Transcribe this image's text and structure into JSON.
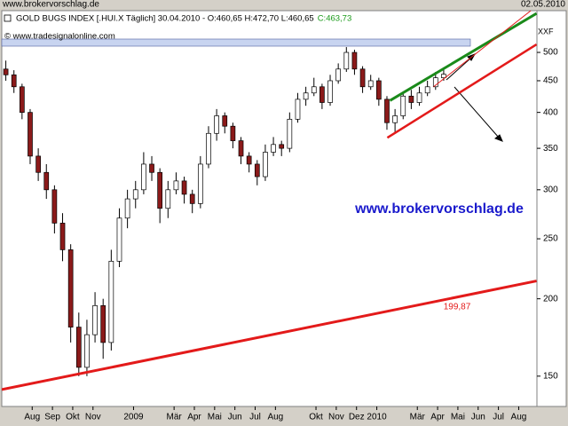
{
  "chart_data": {
    "type": "candlestick",
    "site": "www.brokervorschlag.de",
    "date": "02.05.2010",
    "legend_title": "GOLD BUGS INDEX [.HUI.X  Täglich] 30.04.2010 - O:460,65 H:472,70 L:460,65",
    "legend_close": "C:463,73",
    "copyright": "© www.tradesignalonline.com",
    "axis_label": "XXF",
    "watermark": "www.brokervorschlag.de",
    "log_scale": true,
    "up_color": "#ffffff",
    "down_color": "#8b1a1a",
    "x": [
      0.2,
      0.6,
      1.0,
      1.4,
      1.8,
      2.2,
      2.6,
      3.0,
      3.4,
      3.8,
      4.2,
      4.6,
      5.0,
      5.4,
      5.8,
      6.2,
      6.6,
      7.0,
      7.4,
      7.8,
      8.2,
      8.6,
      9.0,
      9.4,
      9.8,
      10.2,
      10.6,
      11.0,
      11.4,
      11.8,
      12.2,
      12.6,
      13.0,
      13.4,
      13.8,
      14.2,
      14.6,
      15.0,
      15.4,
      15.8,
      16.2,
      16.6,
      17.0,
      17.4,
      17.8,
      18.2,
      18.6,
      19.0,
      19.4,
      19.8,
      20.2,
      20.6,
      21.0,
      21.4,
      21.8
    ],
    "open": [
      470,
      460,
      440,
      400,
      340,
      320,
      300,
      265,
      240,
      180,
      155,
      175,
      195,
      170,
      230,
      270,
      290,
      300,
      330,
      320,
      280,
      300,
      310,
      295,
      285,
      330,
      370,
      395,
      380,
      360,
      340,
      330,
      315,
      345,
      355,
      350,
      390,
      420,
      430,
      440,
      415,
      450,
      470,
      500,
      470,
      440,
      450,
      420,
      385,
      395,
      425,
      415,
      430,
      440,
      455
    ],
    "high": [
      485,
      468,
      445,
      405,
      350,
      330,
      305,
      275,
      245,
      190,
      185,
      205,
      200,
      240,
      280,
      300,
      310,
      345,
      340,
      325,
      310,
      320,
      315,
      300,
      340,
      380,
      405,
      400,
      385,
      365,
      345,
      335,
      355,
      365,
      360,
      400,
      430,
      440,
      455,
      445,
      460,
      480,
      510,
      505,
      475,
      460,
      455,
      425,
      405,
      430,
      435,
      440,
      450,
      465,
      473
    ],
    "low": [
      450,
      430,
      390,
      330,
      310,
      290,
      255,
      230,
      170,
      150,
      150,
      170,
      160,
      165,
      225,
      260,
      280,
      295,
      310,
      265,
      270,
      295,
      285,
      275,
      280,
      325,
      360,
      370,
      350,
      330,
      320,
      305,
      310,
      340,
      340,
      345,
      385,
      410,
      425,
      405,
      410,
      445,
      465,
      460,
      430,
      435,
      410,
      375,
      370,
      390,
      405,
      410,
      425,
      435,
      450
    ],
    "close": [
      460,
      440,
      400,
      340,
      320,
      300,
      265,
      240,
      180,
      155,
      175,
      195,
      170,
      230,
      270,
      290,
      300,
      330,
      320,
      280,
      300,
      310,
      295,
      285,
      330,
      370,
      395,
      380,
      360,
      340,
      330,
      315,
      345,
      355,
      350,
      390,
      420,
      430,
      440,
      415,
      450,
      470,
      500,
      470,
      440,
      450,
      420,
      385,
      395,
      425,
      415,
      430,
      440,
      455,
      461
    ],
    "xlim": [
      0,
      26.4
    ],
    "ylim": [
      134,
      584
    ],
    "yticks": [
      150,
      200,
      250,
      300,
      350,
      400,
      450,
      500
    ],
    "xticks": [
      {
        "value": 1.5,
        "label": "Aug"
      },
      {
        "value": 2.5,
        "label": "Sep"
      },
      {
        "value": 3.5,
        "label": "Okt"
      },
      {
        "value": 4.5,
        "label": "Nov"
      },
      {
        "value": 6.5,
        "label": "2009"
      },
      {
        "value": 8.5,
        "label": "Mär"
      },
      {
        "value": 9.5,
        "label": "Apr"
      },
      {
        "value": 10.5,
        "label": "Mai"
      },
      {
        "value": 11.5,
        "label": "Jun"
      },
      {
        "value": 12.5,
        "label": "Jul"
      },
      {
        "value": 13.5,
        "label": "Aug"
      },
      {
        "value": 15.5,
        "label": "Okt"
      },
      {
        "value": 16.5,
        "label": "Nov"
      },
      {
        "value": 17.5,
        "label": "Dez"
      },
      {
        "value": 18.5,
        "label": "2010"
      },
      {
        "value": 20.5,
        "label": "Mär"
      },
      {
        "value": 21.5,
        "label": "Apr"
      },
      {
        "value": 22.5,
        "label": "Mai"
      },
      {
        "value": 23.5,
        "label": "Jun"
      },
      {
        "value": 24.5,
        "label": "Jul"
      },
      {
        "value": 25.5,
        "label": "Aug"
      }
    ],
    "trendlines": [
      {
        "color": "#e31a1a",
        "width": 3,
        "x": [
          0,
          26.38
        ],
        "y": [
          142.7,
          213.7
        ],
        "value": 199.87,
        "value_label": "199,87"
      },
      {
        "color": "#e31a1a",
        "width": 2.5,
        "x": [
          19.02,
          26.38
        ],
        "y": [
          364,
          515
        ]
      },
      {
        "color": "#1a8a1a",
        "width": 3,
        "x": [
          19.15,
          26.38
        ],
        "y": [
          418,
          578
        ]
      },
      {
        "color": "#e31a1a",
        "width": 1,
        "x": [
          21.3,
          26.1
        ],
        "y": [
          440,
          584
        ]
      }
    ]
  }
}
